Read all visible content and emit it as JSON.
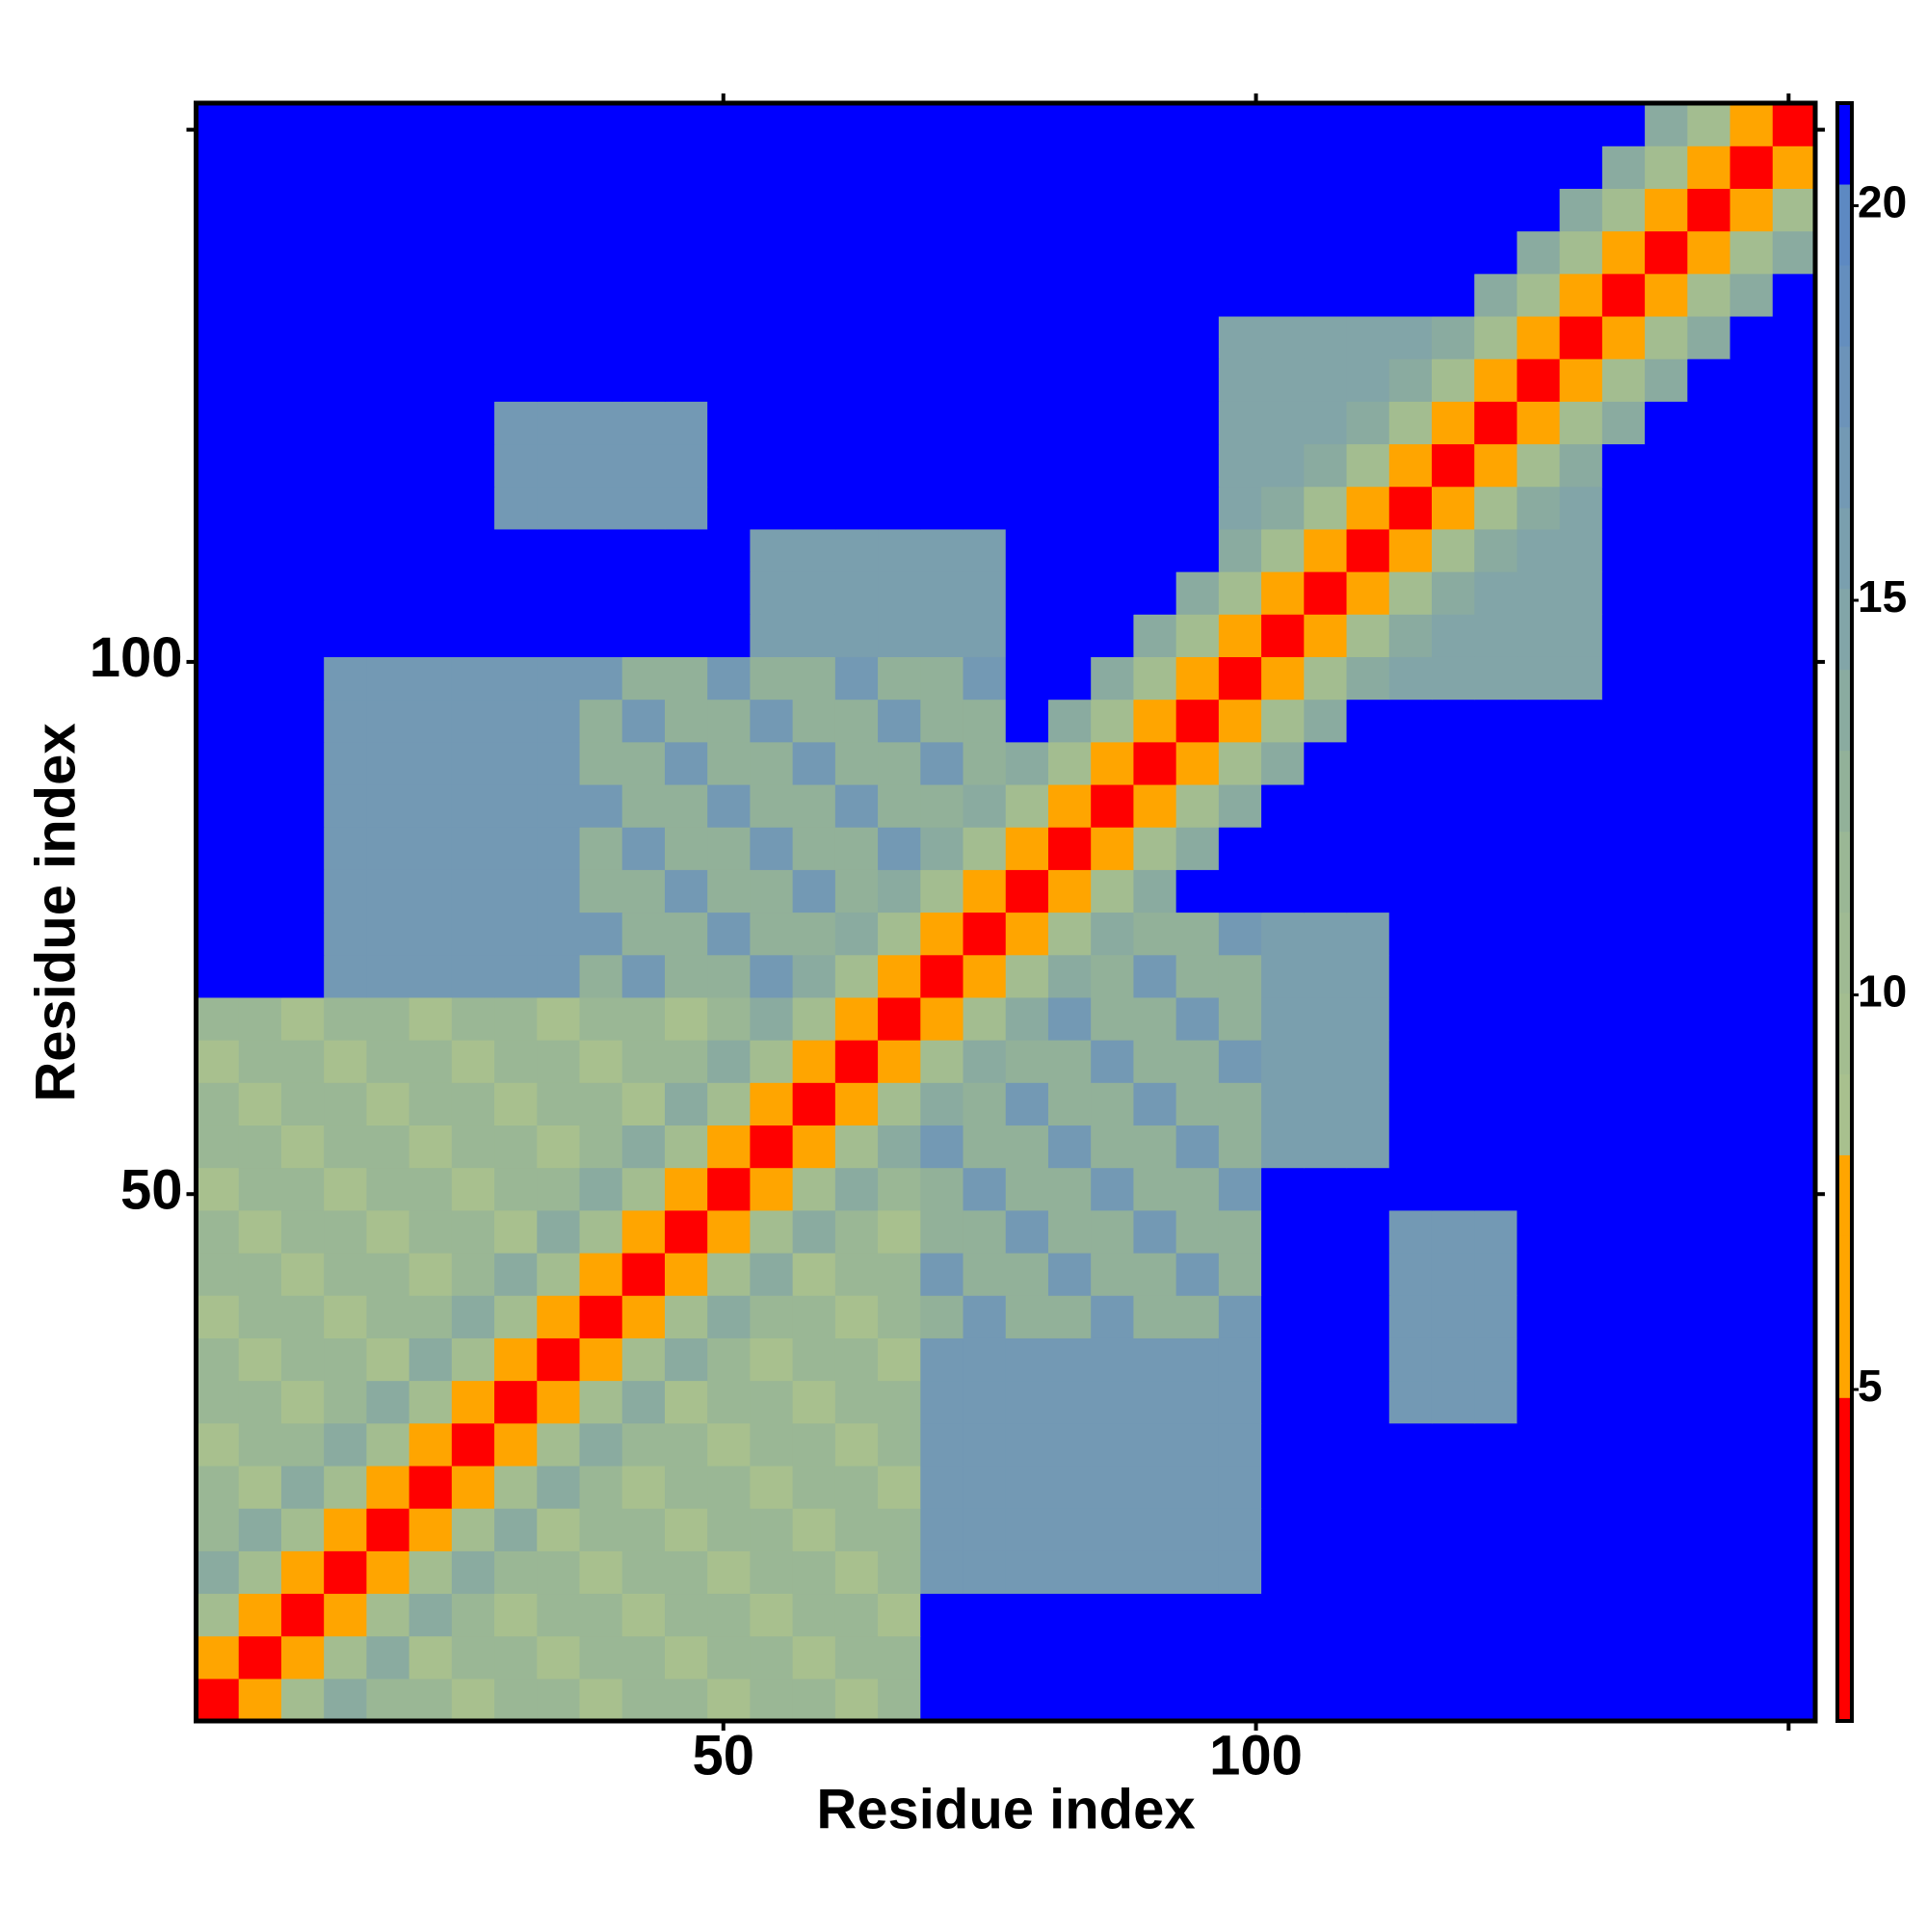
{
  "chart_data": {
    "type": "heatmap",
    "xlabel": "Residue index",
    "ylabel": "Residue index",
    "xlim": [
      0.5,
      152.5
    ],
    "ylim": [
      0.5,
      152.5
    ],
    "xticks": [
      50,
      100
    ],
    "yticks": [
      50,
      100
    ],
    "unlabeled_xticks": [
      150
    ],
    "unlabeled_yticks": [
      150
    ],
    "colorbar": {
      "lim": [
        0.8,
        21.3
      ],
      "ticks": [
        5,
        10,
        15,
        20
      ],
      "colors": [
        "#ff0000",
        "#ff0000",
        "#ff0000",
        "#ff0000",
        "#ffa500",
        "#ffa500",
        "#ffa500",
        "#a8c08e",
        "#a3bd90",
        "#9fba93",
        "#9ab795",
        "#92b199",
        "#8aaba0",
        "#82a5a8",
        "#7a9fae",
        "#7399b4",
        "#6c93b9",
        "#648ebe",
        "#5d89c2",
        "#0000ff"
      ]
    },
    "z": [
      [
        3,
        6,
        10,
        14,
        12,
        12,
        9,
        12,
        12,
        9,
        12,
        12,
        9,
        12,
        12,
        9,
        12,
        22,
        22,
        22,
        22,
        22,
        22,
        22,
        22,
        22,
        22,
        22,
        22,
        22,
        22,
        22,
        22,
        22,
        22,
        22,
        22,
        22
      ],
      [
        6,
        3,
        6,
        10,
        14,
        9,
        12,
        12,
        9,
        12,
        12,
        9,
        12,
        12,
        9,
        12,
        12,
        22,
        22,
        22,
        22,
        22,
        22,
        22,
        22,
        22,
        22,
        22,
        22,
        22,
        22,
        22,
        22,
        22,
        22,
        22,
        22,
        22
      ],
      [
        10,
        6,
        3,
        6,
        10,
        14,
        12,
        9,
        12,
        12,
        9,
        12,
        12,
        9,
        12,
        12,
        9,
        22,
        22,
        22,
        22,
        22,
        22,
        22,
        22,
        22,
        22,
        22,
        22,
        22,
        22,
        22,
        22,
        22,
        22,
        22,
        22,
        22
      ],
      [
        14,
        10,
        6,
        3,
        6,
        10,
        14,
        12,
        12,
        9,
        12,
        12,
        9,
        12,
        12,
        9,
        12,
        17,
        17,
        17,
        17,
        17,
        17,
        17,
        17,
        22,
        22,
        22,
        22,
        22,
        22,
        22,
        22,
        22,
        22,
        22,
        22,
        22
      ],
      [
        12,
        14,
        10,
        6,
        3,
        6,
        10,
        14,
        9,
        12,
        12,
        9,
        12,
        12,
        9,
        12,
        12,
        17,
        17,
        17,
        17,
        17,
        17,
        17,
        17,
        22,
        22,
        22,
        22,
        22,
        22,
        22,
        22,
        22,
        22,
        22,
        22,
        22
      ],
      [
        12,
        9,
        14,
        10,
        6,
        3,
        6,
        10,
        14,
        12,
        9,
        12,
        12,
        9,
        12,
        12,
        9,
        17,
        17,
        17,
        17,
        17,
        17,
        17,
        17,
        22,
        22,
        22,
        22,
        22,
        22,
        22,
        22,
        22,
        22,
        22,
        22,
        22
      ],
      [
        9,
        12,
        12,
        14,
        10,
        6,
        3,
        6,
        10,
        14,
        12,
        12,
        9,
        12,
        12,
        9,
        12,
        17,
        17,
        17,
        17,
        17,
        17,
        17,
        17,
        22,
        22,
        22,
        22,
        22,
        22,
        22,
        22,
        22,
        22,
        22,
        22,
        22
      ],
      [
        12,
        12,
        9,
        12,
        14,
        10,
        6,
        3,
        6,
        10,
        14,
        9,
        12,
        12,
        9,
        12,
        12,
        17,
        17,
        17,
        17,
        17,
        17,
        17,
        17,
        22,
        22,
        22,
        17,
        17,
        17,
        22,
        22,
        22,
        22,
        22,
        22,
        22
      ],
      [
        12,
        9,
        12,
        12,
        9,
        14,
        10,
        6,
        3,
        6,
        10,
        14,
        12,
        9,
        12,
        12,
        9,
        17,
        17,
        17,
        17,
        17,
        17,
        17,
        17,
        22,
        22,
        22,
        17,
        17,
        17,
        22,
        22,
        22,
        22,
        22,
        22,
        22
      ],
      [
        9,
        12,
        12,
        9,
        12,
        12,
        14,
        10,
        6,
        3,
        6,
        10,
        14,
        12,
        12,
        9,
        12,
        13,
        17,
        13,
        13,
        17,
        13,
        13,
        17,
        22,
        22,
        22,
        17,
        17,
        17,
        22,
        22,
        22,
        22,
        22,
        22,
        22
      ],
      [
        12,
        12,
        9,
        12,
        12,
        9,
        12,
        14,
        10,
        6,
        3,
        6,
        10,
        14,
        9,
        12,
        12,
        17,
        13,
        13,
        17,
        13,
        13,
        17,
        13,
        22,
        22,
        22,
        17,
        17,
        17,
        22,
        22,
        22,
        22,
        22,
        22,
        22
      ],
      [
        12,
        9,
        12,
        12,
        9,
        12,
        12,
        9,
        14,
        10,
        6,
        3,
        6,
        10,
        14,
        12,
        9,
        13,
        13,
        17,
        13,
        13,
        17,
        13,
        13,
        22,
        22,
        22,
        17,
        17,
        17,
        22,
        22,
        22,
        22,
        22,
        22,
        22
      ],
      [
        9,
        12,
        12,
        9,
        12,
        12,
        9,
        12,
        12,
        14,
        10,
        6,
        3,
        6,
        10,
        14,
        12,
        13,
        17,
        13,
        13,
        17,
        13,
        13,
        17,
        22,
        22,
        22,
        22,
        22,
        22,
        22,
        22,
        22,
        22,
        22,
        22,
        22
      ],
      [
        12,
        12,
        9,
        12,
        12,
        9,
        12,
        12,
        9,
        12,
        14,
        10,
        6,
        3,
        6,
        10,
        14,
        17,
        13,
        13,
        17,
        13,
        13,
        17,
        13,
        16,
        16,
        16,
        22,
        22,
        22,
        22,
        22,
        22,
        22,
        22,
        22,
        22
      ],
      [
        12,
        9,
        12,
        12,
        9,
        12,
        12,
        9,
        12,
        12,
        9,
        14,
        10,
        6,
        3,
        6,
        10,
        14,
        13,
        17,
        13,
        13,
        17,
        13,
        13,
        16,
        16,
        16,
        22,
        22,
        22,
        22,
        22,
        22,
        22,
        22,
        22,
        22
      ],
      [
        9,
        12,
        12,
        9,
        12,
        12,
        9,
        12,
        12,
        9,
        12,
        12,
        14,
        10,
        6,
        3,
        6,
        10,
        14,
        13,
        13,
        17,
        13,
        13,
        17,
        16,
        16,
        16,
        22,
        22,
        22,
        22,
        22,
        22,
        22,
        22,
        22,
        22
      ],
      [
        12,
        12,
        9,
        12,
        12,
        9,
        12,
        12,
        9,
        12,
        12,
        9,
        12,
        14,
        10,
        6,
        3,
        6,
        10,
        14,
        17,
        13,
        13,
        17,
        13,
        16,
        16,
        16,
        22,
        22,
        22,
        22,
        22,
        22,
        22,
        22,
        22,
        22
      ],
      [
        22,
        22,
        22,
        17,
        17,
        17,
        17,
        17,
        17,
        13,
        17,
        13,
        13,
        17,
        14,
        10,
        6,
        3,
        6,
        10,
        14,
        13,
        17,
        13,
        13,
        16,
        16,
        16,
        22,
        22,
        22,
        22,
        22,
        22,
        22,
        22,
        22,
        22
      ],
      [
        22,
        22,
        22,
        17,
        17,
        17,
        17,
        17,
        17,
        17,
        13,
        13,
        17,
        13,
        13,
        14,
        10,
        6,
        3,
        6,
        10,
        14,
        13,
        13,
        17,
        16,
        16,
        16,
        22,
        22,
        22,
        22,
        22,
        22,
        22,
        22,
        22,
        22
      ],
      [
        22,
        22,
        22,
        17,
        17,
        17,
        17,
        17,
        17,
        13,
        13,
        17,
        13,
        13,
        17,
        13,
        14,
        10,
        6,
        3,
        6,
        10,
        14,
        22,
        22,
        22,
        22,
        22,
        22,
        22,
        22,
        22,
        22,
        22,
        22,
        22,
        22,
        22
      ],
      [
        22,
        22,
        22,
        17,
        17,
        17,
        17,
        17,
        17,
        13,
        17,
        13,
        13,
        17,
        13,
        13,
        17,
        14,
        10,
        6,
        3,
        6,
        10,
        14,
        22,
        22,
        22,
        22,
        22,
        22,
        22,
        22,
        22,
        22,
        22,
        22,
        22,
        22
      ],
      [
        22,
        22,
        22,
        17,
        17,
        17,
        17,
        17,
        17,
        17,
        13,
        13,
        17,
        13,
        13,
        17,
        13,
        13,
        14,
        10,
        6,
        3,
        6,
        10,
        14,
        22,
        22,
        22,
        22,
        22,
        22,
        22,
        22,
        22,
        22,
        22,
        22,
        22
      ],
      [
        22,
        22,
        22,
        17,
        17,
        17,
        17,
        17,
        17,
        13,
        13,
        17,
        13,
        13,
        17,
        13,
        13,
        17,
        13,
        14,
        10,
        6,
        3,
        6,
        10,
        14,
        22,
        22,
        22,
        22,
        22,
        22,
        22,
        22,
        22,
        22,
        22,
        22
      ],
      [
        22,
        22,
        22,
        17,
        17,
        17,
        17,
        17,
        17,
        13,
        17,
        13,
        13,
        17,
        13,
        13,
        17,
        13,
        13,
        22,
        14,
        10,
        6,
        3,
        6,
        10,
        14,
        22,
        22,
        22,
        22,
        22,
        22,
        22,
        22,
        22,
        22,
        22
      ],
      [
        22,
        22,
        22,
        17,
        17,
        17,
        17,
        17,
        17,
        17,
        13,
        13,
        17,
        13,
        13,
        17,
        13,
        13,
        17,
        22,
        22,
        14,
        10,
        6,
        3,
        6,
        10,
        14,
        15,
        15,
        15,
        15,
        15,
        22,
        22,
        22,
        22,
        22
      ],
      [
        22,
        22,
        22,
        22,
        22,
        22,
        22,
        22,
        22,
        22,
        22,
        22,
        22,
        16,
        16,
        16,
        16,
        16,
        16,
        22,
        22,
        22,
        14,
        10,
        6,
        3,
        6,
        10,
        14,
        15,
        15,
        15,
        15,
        22,
        22,
        22,
        22,
        22
      ],
      [
        22,
        22,
        22,
        22,
        22,
        22,
        22,
        22,
        22,
        22,
        22,
        22,
        22,
        16,
        16,
        16,
        16,
        16,
        16,
        22,
        22,
        22,
        22,
        14,
        10,
        6,
        3,
        6,
        10,
        14,
        15,
        15,
        15,
        22,
        22,
        22,
        22,
        22
      ],
      [
        22,
        22,
        22,
        22,
        22,
        22,
        22,
        22,
        22,
        22,
        22,
        22,
        22,
        16,
        16,
        16,
        16,
        16,
        16,
        22,
        22,
        22,
        22,
        22,
        14,
        10,
        6,
        3,
        6,
        10,
        14,
        15,
        15,
        22,
        22,
        22,
        22,
        22
      ],
      [
        22,
        22,
        22,
        22,
        22,
        22,
        22,
        17,
        17,
        17,
        17,
        17,
        22,
        22,
        22,
        22,
        22,
        22,
        22,
        22,
        22,
        22,
        22,
        22,
        15,
        14,
        10,
        6,
        3,
        6,
        10,
        14,
        15,
        22,
        22,
        22,
        22,
        22
      ],
      [
        22,
        22,
        22,
        22,
        22,
        22,
        22,
        17,
        17,
        17,
        17,
        17,
        22,
        22,
        22,
        22,
        22,
        22,
        22,
        22,
        22,
        22,
        22,
        22,
        15,
        15,
        14,
        10,
        6,
        3,
        6,
        10,
        14,
        22,
        22,
        22,
        22,
        22
      ],
      [
        22,
        22,
        22,
        22,
        22,
        22,
        22,
        17,
        17,
        17,
        17,
        17,
        22,
        22,
        22,
        22,
        22,
        22,
        22,
        22,
        22,
        22,
        22,
        22,
        15,
        15,
        15,
        14,
        10,
        6,
        3,
        6,
        10,
        14,
        22,
        22,
        22,
        22
      ],
      [
        22,
        22,
        22,
        22,
        22,
        22,
        22,
        22,
        22,
        22,
        22,
        22,
        22,
        22,
        22,
        22,
        22,
        22,
        22,
        22,
        22,
        22,
        22,
        22,
        15,
        15,
        15,
        15,
        14,
        10,
        6,
        3,
        6,
        10,
        14,
        22,
        22,
        22
      ],
      [
        22,
        22,
        22,
        22,
        22,
        22,
        22,
        22,
        22,
        22,
        22,
        22,
        22,
        22,
        22,
        22,
        22,
        22,
        22,
        22,
        22,
        22,
        22,
        22,
        15,
        15,
        15,
        15,
        15,
        14,
        10,
        6,
        3,
        6,
        10,
        14,
        22,
        22
      ],
      [
        22,
        22,
        22,
        22,
        22,
        22,
        22,
        22,
        22,
        22,
        22,
        22,
        22,
        22,
        22,
        22,
        22,
        22,
        22,
        22,
        22,
        22,
        22,
        22,
        22,
        22,
        22,
        22,
        22,
        22,
        14,
        10,
        6,
        3,
        6,
        10,
        14,
        22
      ],
      [
        22,
        22,
        22,
        22,
        22,
        22,
        22,
        22,
        22,
        22,
        22,
        22,
        22,
        22,
        22,
        22,
        22,
        22,
        22,
        22,
        22,
        22,
        22,
        22,
        22,
        22,
        22,
        22,
        22,
        22,
        22,
        14,
        10,
        6,
        3,
        6,
        10,
        14
      ],
      [
        22,
        22,
        22,
        22,
        22,
        22,
        22,
        22,
        22,
        22,
        22,
        22,
        22,
        22,
        22,
        22,
        22,
        22,
        22,
        22,
        22,
        22,
        22,
        22,
        22,
        22,
        22,
        22,
        22,
        22,
        22,
        22,
        14,
        10,
        6,
        3,
        6,
        10
      ],
      [
        22,
        22,
        22,
        22,
        22,
        22,
        22,
        22,
        22,
        22,
        22,
        22,
        22,
        22,
        22,
        22,
        22,
        22,
        22,
        22,
        22,
        22,
        22,
        22,
        22,
        22,
        22,
        22,
        22,
        22,
        22,
        22,
        22,
        14,
        10,
        6,
        3,
        6
      ],
      [
        22,
        22,
        22,
        22,
        22,
        22,
        22,
        22,
        22,
        22,
        22,
        22,
        22,
        22,
        22,
        22,
        22,
        22,
        22,
        22,
        22,
        22,
        22,
        22,
        22,
        22,
        22,
        22,
        22,
        22,
        22,
        22,
        22,
        22,
        14,
        10,
        6,
        3
      ]
    ]
  }
}
